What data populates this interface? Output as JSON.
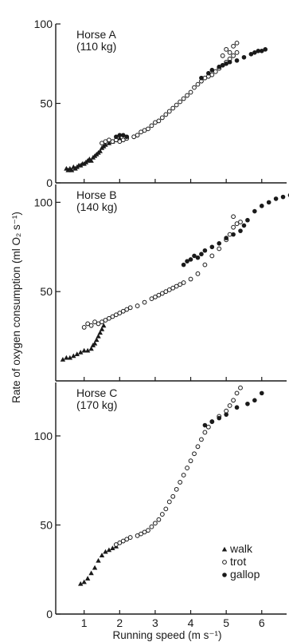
{
  "chart_data": {
    "type": "scatter",
    "xlabel": "Running speed (m s⁻¹)",
    "ylabel": "Rate of oxygen consumption (ml O₂ s⁻¹)",
    "x_ticks": [
      "1",
      "2",
      "3",
      "4",
      "5",
      "6"
    ],
    "xlim": [
      0.2,
      6.7
    ],
    "legend": {
      "placement": "bottom-right",
      "entries": [
        {
          "gait": "walk",
          "label": "walk",
          "marker": "filled-triangle"
        },
        {
          "gait": "trot",
          "label": "trot",
          "marker": "open-circle"
        },
        {
          "gait": "gallop",
          "label": "gallop",
          "marker": "filled-circle"
        }
      ]
    },
    "panels": [
      {
        "name_label": "Horse A",
        "mass_label": "(110 kg)",
        "ylim": [
          0,
          100
        ],
        "y_ticks": [
          0,
          50,
          100
        ],
        "series": [
          {
            "gait": "walk",
            "points": [
              [
                0.5,
                9
              ],
              [
                0.55,
                8
              ],
              [
                0.6,
                9
              ],
              [
                0.65,
                8
              ],
              [
                0.7,
                10
              ],
              [
                0.75,
                9
              ],
              [
                0.8,
                10
              ],
              [
                0.85,
                11
              ],
              [
                0.9,
                11
              ],
              [
                0.95,
                12
              ],
              [
                1.0,
                12
              ],
              [
                1.05,
                13
              ],
              [
                1.1,
                14
              ],
              [
                1.15,
                15
              ],
              [
                1.2,
                14
              ],
              [
                1.25,
                16
              ],
              [
                1.3,
                17
              ],
              [
                1.35,
                18
              ],
              [
                1.4,
                19
              ],
              [
                1.45,
                20
              ],
              [
                1.5,
                22
              ],
              [
                1.55,
                23
              ],
              [
                1.6,
                24
              ],
              [
                1.7,
                25
              ],
              [
                1.8,
                26
              ],
              [
                1.9,
                27
              ],
              [
                2.0,
                28
              ]
            ]
          },
          {
            "gait": "trot",
            "points": [
              [
                1.5,
                25
              ],
              [
                1.6,
                26
              ],
              [
                1.7,
                27
              ],
              [
                1.8,
                26
              ],
              [
                1.9,
                27
              ],
              [
                2.0,
                26
              ],
              [
                2.1,
                27
              ],
              [
                2.2,
                28
              ],
              [
                2.4,
                29
              ],
              [
                2.5,
                30
              ],
              [
                2.6,
                32
              ],
              [
                2.7,
                33
              ],
              [
                2.8,
                34
              ],
              [
                2.9,
                36
              ],
              [
                3.0,
                38
              ],
              [
                3.1,
                39
              ],
              [
                3.2,
                41
              ],
              [
                3.3,
                43
              ],
              [
                3.4,
                45
              ],
              [
                3.5,
                47
              ],
              [
                3.6,
                49
              ],
              [
                3.7,
                51
              ],
              [
                3.8,
                53
              ],
              [
                3.9,
                55
              ],
              [
                4.0,
                57
              ],
              [
                4.1,
                60
              ],
              [
                4.2,
                62
              ],
              [
                4.3,
                64
              ],
              [
                4.4,
                66
              ],
              [
                4.5,
                67
              ],
              [
                4.6,
                68
              ],
              [
                4.7,
                70
              ],
              [
                4.8,
                72
              ],
              [
                4.9,
                74
              ],
              [
                5.0,
                76
              ],
              [
                5.1,
                78
              ],
              [
                5.2,
                80
              ],
              [
                5.3,
                82
              ],
              [
                5.0,
                84
              ],
              [
                5.2,
                86
              ],
              [
                5.3,
                88
              ],
              [
                4.9,
                80
              ],
              [
                5.1,
                82
              ]
            ]
          },
          {
            "gait": "gallop",
            "points": [
              [
                1.9,
                29
              ],
              [
                2.0,
                30
              ],
              [
                2.1,
                30
              ],
              [
                2.2,
                29
              ],
              [
                4.3,
                66
              ],
              [
                4.5,
                69
              ],
              [
                4.6,
                71
              ],
              [
                4.8,
                73
              ],
              [
                4.9,
                74
              ],
              [
                5.0,
                75
              ],
              [
                5.1,
                76
              ],
              [
                5.3,
                77
              ],
              [
                5.5,
                79
              ],
              [
                5.7,
                81
              ],
              [
                5.8,
                82
              ],
              [
                5.9,
                83
              ],
              [
                6.0,
                83
              ],
              [
                6.1,
                84
              ]
            ]
          }
        ]
      },
      {
        "name_label": "Horse B",
        "mass_label": "(140 kg)",
        "ylim": [
          0,
          110
        ],
        "y_ticks": [
          50,
          100
        ],
        "series": [
          {
            "gait": "walk",
            "points": [
              [
                0.4,
                12
              ],
              [
                0.5,
                13
              ],
              [
                0.6,
                13
              ],
              [
                0.7,
                14
              ],
              [
                0.8,
                15
              ],
              [
                0.9,
                16
              ],
              [
                1.0,
                17
              ],
              [
                1.1,
                17
              ],
              [
                1.2,
                18
              ],
              [
                1.25,
                20
              ],
              [
                1.3,
                21
              ],
              [
                1.35,
                23
              ],
              [
                1.4,
                25
              ],
              [
                1.45,
                27
              ],
              [
                1.5,
                29
              ],
              [
                1.55,
                31
              ]
            ]
          },
          {
            "gait": "trot",
            "points": [
              [
                1.0,
                30
              ],
              [
                1.1,
                32
              ],
              [
                1.2,
                31
              ],
              [
                1.3,
                33
              ],
              [
                1.4,
                32
              ],
              [
                1.5,
                33
              ],
              [
                1.6,
                34
              ],
              [
                1.7,
                35
              ],
              [
                1.8,
                36
              ],
              [
                1.9,
                37
              ],
              [
                2.0,
                38
              ],
              [
                2.1,
                39
              ],
              [
                2.2,
                40
              ],
              [
                2.3,
                41
              ],
              [
                2.5,
                42
              ],
              [
                2.7,
                44
              ],
              [
                2.9,
                46
              ],
              [
                3.0,
                47
              ],
              [
                3.1,
                48
              ],
              [
                3.2,
                49
              ],
              [
                3.3,
                50
              ],
              [
                3.4,
                51
              ],
              [
                3.5,
                52
              ],
              [
                3.6,
                53
              ],
              [
                3.7,
                54
              ],
              [
                3.8,
                55
              ],
              [
                4.0,
                57
              ],
              [
                4.2,
                60
              ],
              [
                4.4,
                65
              ],
              [
                4.6,
                70
              ],
              [
                4.8,
                74
              ],
              [
                5.0,
                79
              ],
              [
                5.1,
                82
              ],
              [
                5.2,
                86
              ],
              [
                5.3,
                88
              ],
              [
                5.2,
                92
              ],
              [
                5.4,
                89
              ]
            ]
          },
          {
            "gait": "gallop",
            "points": [
              [
                3.8,
                65
              ],
              [
                3.9,
                67
              ],
              [
                4.0,
                68
              ],
              [
                4.1,
                70
              ],
              [
                4.2,
                69
              ],
              [
                4.3,
                71
              ],
              [
                4.4,
                73
              ],
              [
                4.6,
                75
              ],
              [
                4.8,
                77
              ],
              [
                5.0,
                80
              ],
              [
                5.2,
                82
              ],
              [
                5.4,
                84
              ],
              [
                5.5,
                87
              ],
              [
                5.6,
                90
              ],
              [
                5.8,
                95
              ],
              [
                6.0,
                98
              ],
              [
                6.2,
                100
              ],
              [
                6.4,
                102
              ],
              [
                6.6,
                103
              ],
              [
                6.8,
                104
              ]
            ]
          }
        ]
      },
      {
        "name_label": "Horse C",
        "mass_label": "(170 kg)",
        "ylim": [
          0,
          130
        ],
        "y_ticks": [
          0,
          50,
          100
        ],
        "series": [
          {
            "gait": "walk",
            "points": [
              [
                0.9,
                17
              ],
              [
                1.0,
                18
              ],
              [
                1.1,
                20
              ],
              [
                1.2,
                23
              ],
              [
                1.3,
                26
              ],
              [
                1.4,
                30
              ],
              [
                1.5,
                33
              ],
              [
                1.6,
                35
              ],
              [
                1.7,
                36
              ],
              [
                1.8,
                37
              ],
              [
                1.9,
                38
              ]
            ]
          },
          {
            "gait": "trot",
            "points": [
              [
                1.9,
                39
              ],
              [
                2.0,
                40
              ],
              [
                2.1,
                41
              ],
              [
                2.2,
                42
              ],
              [
                2.3,
                43
              ],
              [
                2.5,
                44
              ],
              [
                2.6,
                45
              ],
              [
                2.7,
                46
              ],
              [
                2.8,
                47
              ],
              [
                2.9,
                49
              ],
              [
                3.0,
                51
              ],
              [
                3.1,
                53
              ],
              [
                3.2,
                56
              ],
              [
                3.3,
                59
              ],
              [
                3.4,
                63
              ],
              [
                3.5,
                66
              ],
              [
                3.6,
                70
              ],
              [
                3.7,
                74
              ],
              [
                3.8,
                78
              ],
              [
                3.9,
                82
              ],
              [
                4.0,
                86
              ],
              [
                4.1,
                90
              ],
              [
                4.2,
                94
              ],
              [
                4.3,
                98
              ],
              [
                4.4,
                102
              ],
              [
                4.5,
                105
              ],
              [
                4.6,
                108
              ],
              [
                4.8,
                111
              ],
              [
                5.0,
                114
              ],
              [
                5.1,
                117
              ],
              [
                5.2,
                120
              ],
              [
                5.3,
                124
              ],
              [
                5.4,
                127
              ]
            ]
          },
          {
            "gait": "gallop",
            "points": [
              [
                4.4,
                106
              ],
              [
                4.6,
                108
              ],
              [
                4.8,
                110
              ],
              [
                5.0,
                112
              ],
              [
                5.3,
                116
              ],
              [
                5.6,
                118
              ],
              [
                5.8,
                120
              ],
              [
                6.0,
                124
              ]
            ]
          }
        ]
      }
    ]
  }
}
